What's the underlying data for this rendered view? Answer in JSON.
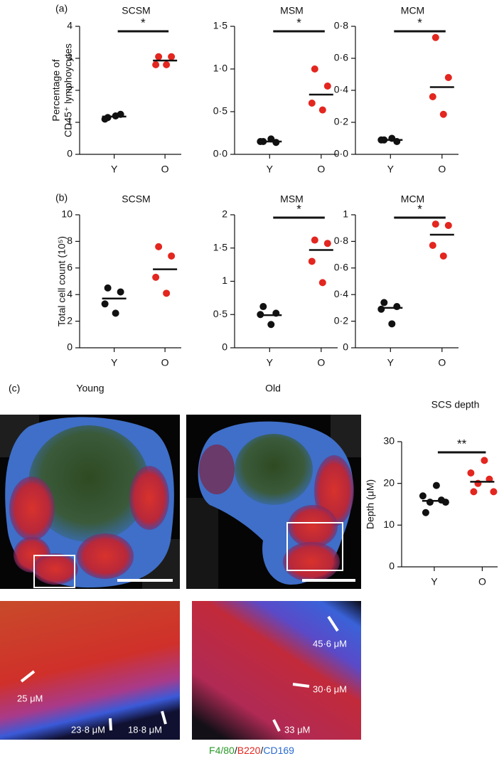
{
  "panel_labels": [
    "(a)",
    "(b)",
    "(c)"
  ],
  "chart_data": [
    {
      "type": "strip",
      "title": "SCSM",
      "ylabel": [
        "Percentage of",
        "CD45⁺ lymphoycytes"
      ],
      "categories": [
        "Y",
        "O"
      ],
      "values": [
        [
          1.15,
          1.25,
          1.1,
          1.2
        ],
        [
          3.05,
          3.05,
          2.8,
          2.8
        ]
      ],
      "means": [
        1.18,
        2.93
      ],
      "colors": [
        "#111111",
        "#e3261f"
      ],
      "ylim": [
        0,
        4
      ],
      "yticks": [
        0,
        1,
        2,
        3,
        4
      ],
      "significance": "*"
    },
    {
      "type": "strip",
      "title": "MSM",
      "categories": [
        "Y",
        "O"
      ],
      "values": [
        [
          0.15,
          0.14,
          0.15,
          0.18
        ],
        [
          1.0,
          0.8,
          0.6,
          0.52
        ]
      ],
      "means": [
        0.15,
        0.7
      ],
      "colors": [
        "#111111",
        "#e3261f"
      ],
      "ylim": [
        0,
        1.5
      ],
      "yticks": [
        {
          "value": 0,
          "label": "0·0"
        },
        {
          "value": 0.5,
          "label": "0·5"
        },
        {
          "value": 1.0,
          "label": "1·0"
        },
        {
          "value": 1.5,
          "label": "1·5"
        }
      ],
      "significance": "*"
    },
    {
      "type": "strip",
      "title": "MCM",
      "categories": [
        "Y",
        "O"
      ],
      "values": [
        [
          0.09,
          0.08,
          0.09,
          0.1
        ],
        [
          0.73,
          0.48,
          0.36,
          0.25
        ]
      ],
      "means": [
        0.09,
        0.42
      ],
      "colors": [
        "#111111",
        "#e3261f"
      ],
      "ylim": [
        0,
        0.8
      ],
      "yticks": [
        {
          "value": 0,
          "label": "0·0"
        },
        {
          "value": 0.2,
          "label": "0·2"
        },
        {
          "value": 0.4,
          "label": "0·4"
        },
        {
          "value": 0.6,
          "label": "0·6"
        },
        {
          "value": 0.8,
          "label": "0·8"
        }
      ],
      "significance": "*"
    },
    {
      "type": "strip",
      "title": "SCSM",
      "ylabel": [
        "Total cell count (10⁵)"
      ],
      "categories": [
        "Y",
        "O"
      ],
      "values": [
        [
          4.5,
          4.2,
          3.3,
          2.6
        ],
        [
          7.6,
          6.9,
          5.3,
          4.1
        ]
      ],
      "means": [
        3.7,
        5.9
      ],
      "colors": [
        "#111111",
        "#e3261f"
      ],
      "ylim": [
        0,
        10
      ],
      "yticks": [
        0,
        2,
        4,
        6,
        8,
        10
      ]
    },
    {
      "type": "strip",
      "title": "MSM",
      "categories": [
        "Y",
        "O"
      ],
      "values": [
        [
          0.62,
          0.52,
          0.5,
          0.35
        ],
        [
          1.62,
          1.57,
          1.3,
          0.98
        ]
      ],
      "means": [
        0.49,
        1.47
      ],
      "colors": [
        "#111111",
        "#e3261f"
      ],
      "ylim": [
        0,
        2
      ],
      "yticks": [
        0,
        {
          "value": 0.5,
          "label": "0·5"
        },
        1,
        {
          "value": 1.5,
          "label": "1·5"
        },
        2
      ],
      "significance": "*"
    },
    {
      "type": "strip",
      "title": "MCM",
      "categories": [
        "Y",
        "O"
      ],
      "values": [
        [
          0.34,
          0.31,
          0.29,
          0.18
        ],
        [
          0.93,
          0.92,
          0.77,
          0.69
        ]
      ],
      "means": [
        0.3,
        0.85
      ],
      "colors": [
        "#111111",
        "#e3261f"
      ],
      "ylim": [
        0,
        1
      ],
      "yticks": [
        0,
        {
          "value": 0.2,
          "label": "0·2"
        },
        {
          "value": 0.4,
          "label": "0·4"
        },
        {
          "value": 0.6,
          "label": "0·6"
        },
        {
          "value": 0.8,
          "label": "0·8"
        },
        1
      ],
      "significance": "*"
    },
    {
      "type": "strip",
      "title": "SCS depth",
      "ylabel": [
        "Depth (μM)"
      ],
      "categories": [
        "Y",
        "O"
      ],
      "values": [
        [
          19.5,
          17,
          16,
          15.5,
          15.5,
          13
        ],
        [
          25.5,
          22.5,
          21,
          20,
          18,
          18
        ]
      ],
      "means": [
        15.8,
        20.4
      ],
      "colors": [
        "#111111",
        "#e3261f"
      ],
      "ylim": [
        0,
        30
      ],
      "yticks": [
        0,
        10,
        20,
        30
      ],
      "significance": "**"
    }
  ],
  "micrographs": {
    "titles": [
      "Young",
      "Old"
    ],
    "measurements": [
      "25 μM",
      "23·8 μM",
      "18·8 μM",
      "45·6 μM",
      "30·6 μM",
      "33 μM"
    ],
    "stain_legend": [
      "F4/80",
      "/",
      "B220",
      "/",
      "CD169"
    ]
  }
}
